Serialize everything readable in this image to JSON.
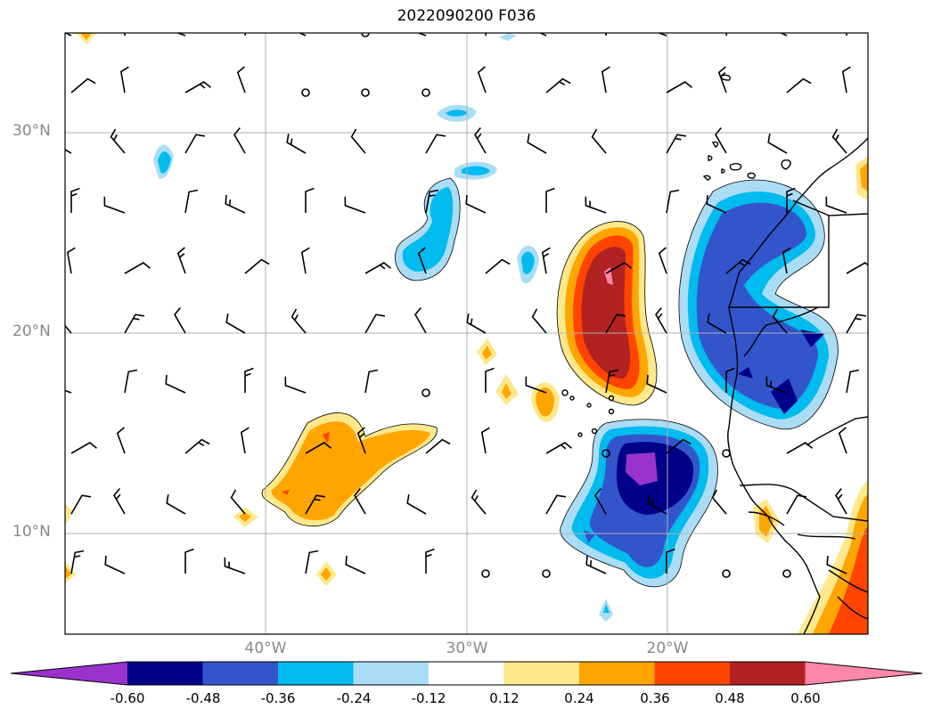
{
  "title": "2022090200 F036",
  "latitude_labels": [
    "30°N",
    "20°N",
    "10°N"
  ],
  "longitude_labels": [
    "40°W",
    "30°W",
    "20°W"
  ],
  "colorbar": {
    "colors": [
      "#9933cc",
      "#000088",
      "#3355cc",
      "#00bbee",
      "#aaddf5",
      "#ffffff",
      "#ffe88a",
      "#ffa500",
      "#ff4400",
      "#b22222",
      "#ff88aa"
    ],
    "tick_labels": [
      "-0.60",
      "-0.48",
      "-0.36",
      "-0.24",
      "-0.12",
      "0.12",
      "0.24",
      "0.36",
      "0.48",
      "0.60"
    ]
  }
}
